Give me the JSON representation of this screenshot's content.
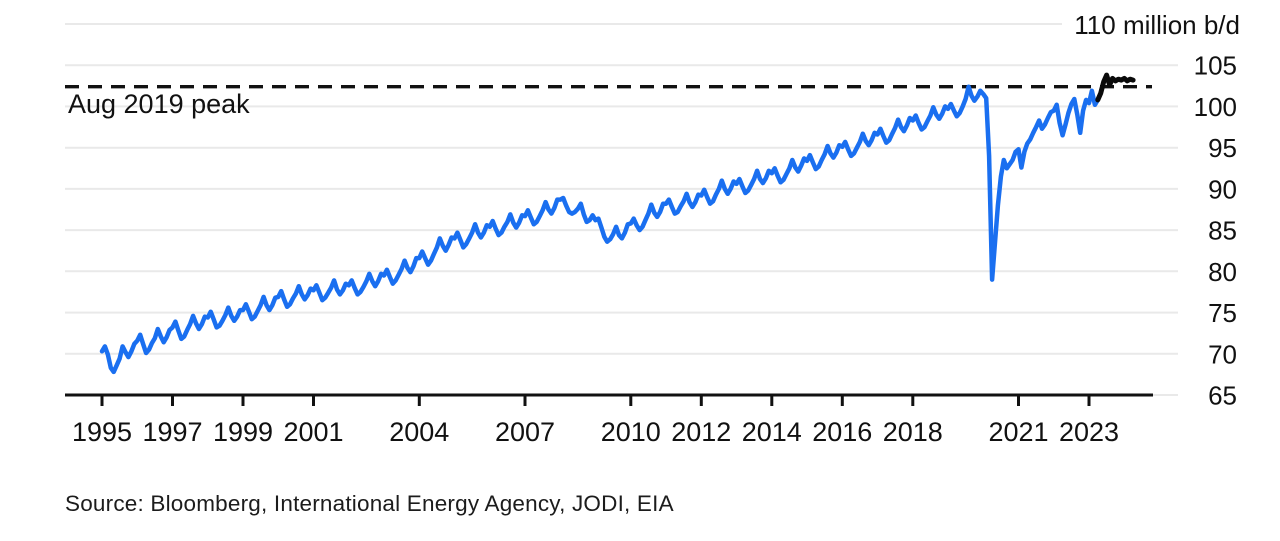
{
  "chart_data": {
    "type": "line",
    "unit_label": "110 million b/d",
    "peak_annotation": "Aug 2019 peak",
    "peak_line_value": 102.4,
    "ylim": [
      65,
      110
    ],
    "xlim": [
      1994.9,
      2024.6
    ],
    "grid": true,
    "y_gridline_values": [
      110,
      105,
      100,
      95,
      90,
      85,
      80,
      75,
      70,
      65
    ],
    "y_axis_tick_labels": [
      105,
      100,
      95,
      90,
      85,
      80,
      75,
      70,
      65
    ],
    "x_tick_years": [
      1995,
      1997,
      1999,
      2001,
      2004,
      2007,
      2010,
      2012,
      2014,
      2016,
      2018,
      2021,
      2023
    ],
    "series": [
      {
        "name": "world-oil-demand-monthly",
        "color": "#1a6ff0",
        "start_year": 1995,
        "start_month": 1,
        "monthly_values": [
          70.3,
          70.9,
          69.9,
          68.3,
          67.8,
          68.6,
          69.4,
          70.9,
          70.2,
          69.6,
          70.3,
          71.2,
          71.6,
          72.3,
          71.2,
          70.1,
          70.5,
          71.3,
          71.9,
          73.0,
          72.1,
          71.4,
          72.0,
          72.9,
          73.2,
          73.9,
          72.8,
          71.8,
          72.1,
          72.9,
          73.6,
          74.6,
          73.7,
          73.0,
          73.6,
          74.5,
          74.4,
          75.1,
          74.2,
          73.2,
          73.4,
          74.0,
          74.7,
          75.6,
          74.6,
          74.0,
          74.5,
          75.3,
          75.3,
          76.0,
          75.1,
          74.2,
          74.5,
          75.2,
          75.9,
          76.9,
          75.9,
          75.3,
          75.9,
          76.8,
          76.9,
          77.6,
          76.6,
          75.7,
          76.0,
          76.7,
          77.3,
          78.2,
          77.2,
          76.6,
          77.1,
          77.9,
          77.7,
          78.3,
          77.4,
          76.5,
          76.8,
          77.4,
          78.0,
          78.9,
          77.8,
          77.2,
          77.7,
          78.5,
          78.3,
          78.9,
          78.0,
          77.2,
          77.5,
          78.1,
          78.8,
          79.7,
          78.8,
          78.2,
          78.8,
          79.7,
          79.5,
          80.2,
          79.3,
          78.5,
          78.9,
          79.6,
          80.3,
          81.3,
          80.4,
          79.9,
          80.6,
          81.6,
          81.6,
          82.4,
          81.6,
          80.8,
          81.3,
          82.1,
          82.9,
          84.0,
          83.1,
          82.5,
          83.2,
          84.1,
          84.0,
          84.7,
          83.8,
          82.9,
          83.3,
          84.0,
          84.7,
          85.7,
          84.7,
          84.1,
          84.7,
          85.6,
          85.4,
          86.1,
          85.2,
          84.4,
          84.7,
          85.4,
          86.0,
          86.9,
          85.9,
          85.3,
          85.9,
          86.8,
          86.7,
          87.4,
          86.5,
          85.7,
          86.0,
          86.7,
          87.4,
          88.4,
          87.5,
          87.0,
          87.7,
          88.7,
          88.7,
          88.9,
          88.0,
          87.2,
          87.0,
          87.2,
          87.6,
          88.2,
          86.9,
          86.0,
          86.2,
          86.8,
          86.2,
          86.4,
          85.3,
          84.2,
          83.6,
          83.9,
          84.5,
          85.4,
          84.4,
          84.0,
          84.7,
          85.7,
          85.8,
          86.4,
          85.6,
          85.0,
          85.4,
          86.2,
          87.0,
          88.1,
          87.1,
          86.6,
          87.2,
          88.2,
          88.2,
          88.7,
          87.8,
          87.0,
          87.2,
          87.9,
          88.5,
          89.4,
          88.4,
          87.8,
          88.4,
          89.3,
          89.2,
          89.9,
          89.0,
          88.2,
          88.5,
          89.3,
          90.0,
          91.0,
          90.0,
          89.4,
          90.0,
          90.9,
          90.6,
          91.2,
          90.3,
          89.5,
          89.8,
          90.5,
          91.2,
          92.2,
          91.2,
          90.7,
          91.3,
          92.2,
          91.9,
          92.5,
          91.6,
          90.8,
          91.1,
          91.8,
          92.5,
          93.5,
          92.6,
          92.1,
          92.8,
          93.7,
          93.4,
          94.1,
          93.2,
          92.4,
          92.7,
          93.5,
          94.2,
          95.2,
          94.3,
          93.8,
          94.4,
          95.3,
          95.1,
          95.7,
          94.8,
          94.0,
          94.3,
          95.0,
          95.7,
          96.7,
          95.8,
          95.3,
          95.9,
          96.8,
          96.6,
          97.3,
          96.4,
          95.6,
          95.9,
          96.7,
          97.4,
          98.4,
          97.5,
          97.0,
          97.7,
          98.6,
          98.3,
          98.9,
          98.0,
          97.2,
          97.5,
          98.2,
          98.9,
          99.9,
          99.0,
          98.5,
          99.1,
          100.0,
          99.7,
          100.3,
          99.5,
          98.8,
          99.2,
          100.0,
          100.9,
          102.4,
          101.3,
          100.7,
          101.2,
          101.9,
          101.5,
          101.0,
          94.0,
          79.0,
          83.5,
          88.0,
          91.5,
          93.5,
          92.5,
          93.0,
          93.5,
          94.5,
          94.8,
          92.6,
          94.5,
          95.5,
          96.0,
          96.8,
          97.5,
          98.3,
          97.3,
          97.8,
          98.6,
          99.3,
          99.5,
          100.2,
          98.0,
          96.5,
          97.8,
          99.2,
          100.3,
          100.9,
          99.0,
          96.8,
          99.5,
          100.8,
          100.4,
          101.9,
          100.2,
          100.8
        ]
      },
      {
        "name": "latest-months",
        "color": "#0a0a0a",
        "start_year": 2023,
        "start_month": 4,
        "monthly_values": [
          100.8,
          101.6,
          103.0,
          103.8,
          102.6,
          103.4,
          103.1,
          103.3,
          103.2,
          103.4,
          103.1,
          103.3,
          103.2
        ]
      }
    ],
    "source": "Source: Bloomberg, International Energy Agency, JODI, EIA"
  },
  "colors": {
    "line_blue": "#1a6ff0",
    "line_black": "#0a0a0a",
    "gridline": "#e9e9e9",
    "axis": "#111111",
    "background": "#ffffff"
  }
}
